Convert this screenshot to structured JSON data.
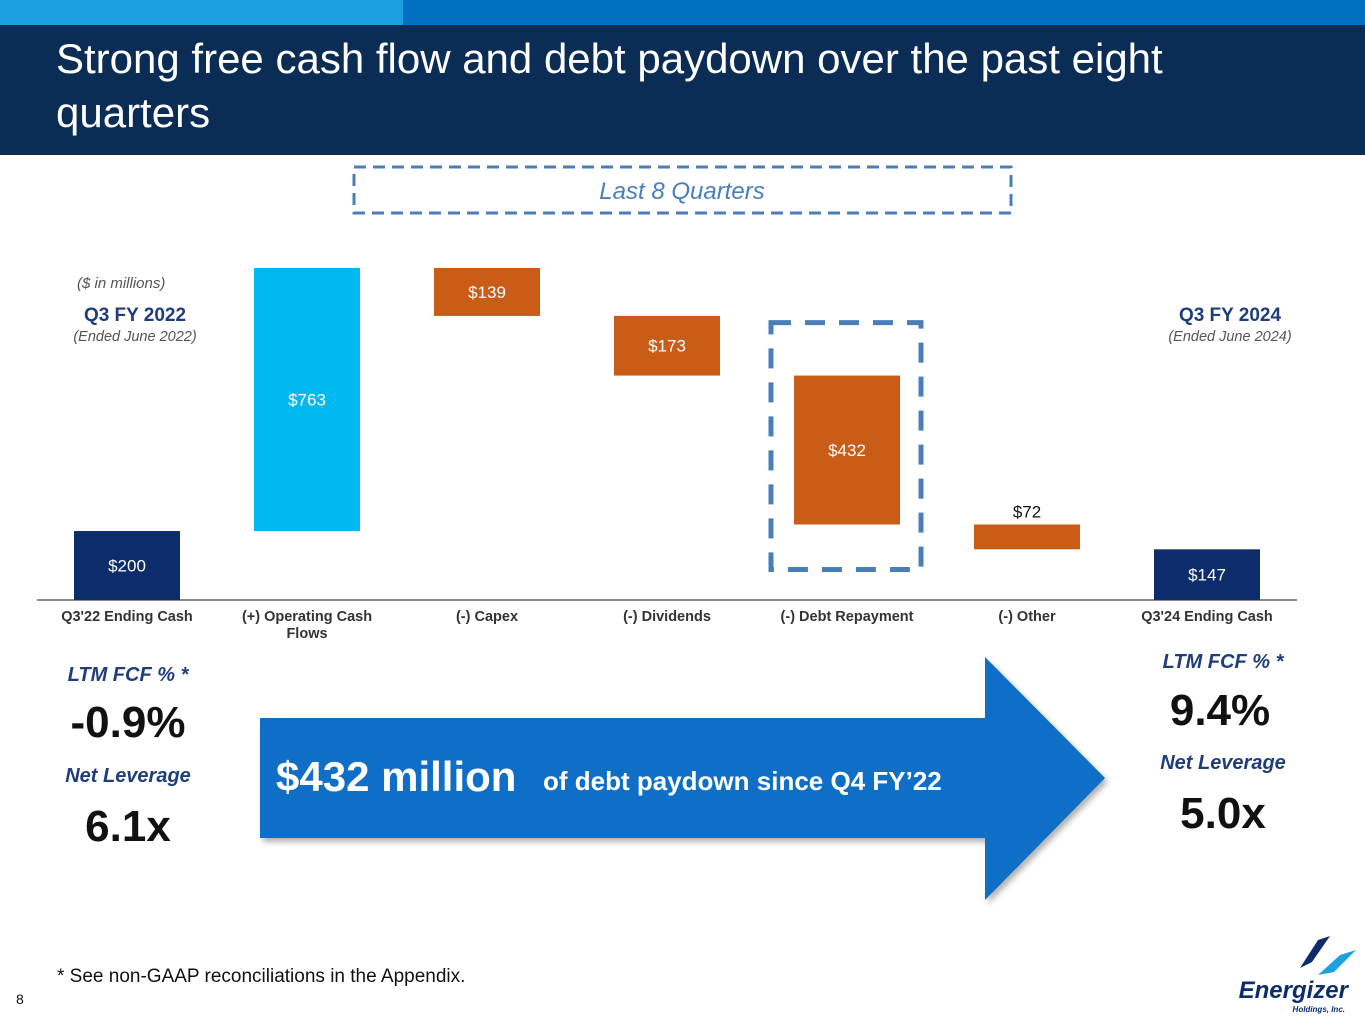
{
  "header": {
    "title": "Strong free cash flow and debt paydown over the past eight quarters"
  },
  "period_box": "Last 8 Quarters",
  "units_note": "($ in millions)",
  "start_label": {
    "title": "Q3 FY 2022",
    "subtitle": "(Ended June 2022)"
  },
  "end_label": {
    "title": "Q3 FY 2024",
    "subtitle": "(Ended June 2024)"
  },
  "left_metrics": {
    "fcf_label": "LTM FCF % *",
    "fcf_value": "-0.9%",
    "leverage_label": "Net Leverage",
    "leverage_value": "6.1x"
  },
  "right_metrics": {
    "fcf_label": "LTM FCF % *",
    "fcf_value": "9.4%",
    "leverage_label": "Net Leverage",
    "leverage_value": "5.0x"
  },
  "arrow": {
    "highlight": "$432 million",
    "text": "of debt paydown since Q4 FY’22"
  },
  "footnote": "* See non-GAAP reconciliations in the Appendix.",
  "page_number": "8",
  "logo": {
    "name": "Energizer",
    "sub": "Holdings, Inc."
  },
  "chart_data": {
    "type": "waterfall",
    "categories": [
      "Q3'22 Ending Cash",
      "(+) Operating Cash Flows",
      "(-) Capex",
      "(-) Dividends",
      "(-) Debt Repayment",
      "(-) Other",
      "Q3'24 Ending Cash"
    ],
    "values": [
      200,
      763,
      139,
      173,
      432,
      72,
      147
    ],
    "value_labels": [
      "$200",
      "$763",
      "$139",
      "$173",
      "$432",
      "$72",
      "$147"
    ],
    "kinds": [
      "total",
      "increase",
      "decrease",
      "decrease",
      "decrease",
      "decrease",
      "total"
    ],
    "colors": [
      "#0d2c6c",
      "#00b9f1",
      "#c95c16",
      "#c95c16",
      "#c95c16",
      "#c95c16",
      "#0d2c6c"
    ],
    "highlight_index": 4
  }
}
